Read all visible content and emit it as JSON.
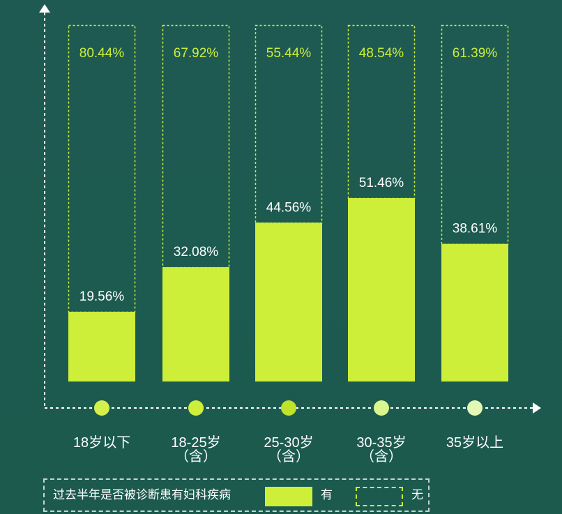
{
  "chart_data": {
    "type": "bar",
    "stacked": true,
    "categories": [
      "18岁以下",
      "18-25岁\n（含）",
      "25-30岁\n（含）",
      "30-35岁\n（含）",
      "35岁以上"
    ],
    "series": [
      {
        "name": "有",
        "values": [
          19.56,
          32.08,
          44.56,
          51.46,
          38.61
        ],
        "color": "#cdef39",
        "style": "solid"
      },
      {
        "name": "无",
        "values": [
          80.44,
          67.92,
          55.44,
          48.54,
          61.39
        ],
        "color": "#cdef39",
        "style": "dashed-outline"
      }
    ],
    "data_labels": {
      "有": [
        "19.56%",
        "32.08%",
        "44.56%",
        "51.46%",
        "38.61%"
      ],
      "无": [
        "80.44%",
        "67.92%",
        "55.44%",
        "48.54%",
        "61.39%"
      ]
    },
    "ylim": [
      0,
      100
    ],
    "grid": false,
    "legend": {
      "position": "bottom",
      "title": "过去半年是否被诊断患有妇科疾病",
      "items": [
        {
          "label": "有",
          "style": "solid"
        },
        {
          "label": "无",
          "style": "dashed-outline"
        }
      ]
    },
    "colors": {
      "background": "#1f5a52",
      "bar_fill": "#cdef39",
      "dashed_outline": "#cdef39",
      "axis": "#ffffff",
      "label_text": "#ffffff",
      "top_label_text": "#cdef39"
    },
    "marker_colors": [
      "#d4f04a",
      "#cdef39",
      "#bfe22a",
      "#d9f58b",
      "#e3f8b4"
    ]
  }
}
